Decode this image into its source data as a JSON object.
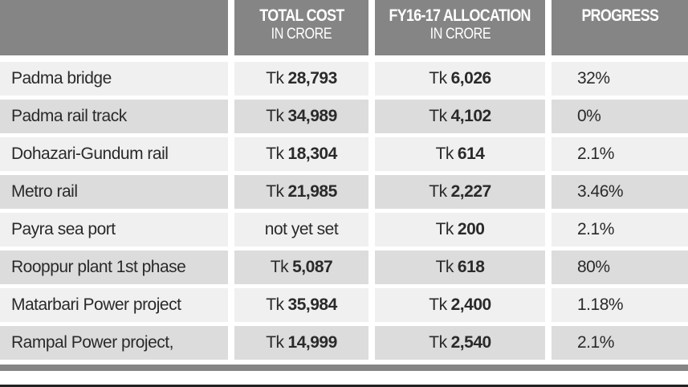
{
  "header": {
    "columns": [
      {
        "title": "",
        "subtitle": ""
      },
      {
        "title": "TOTAL COST",
        "subtitle": "IN CRORE"
      },
      {
        "title": "FY16-17 ALLOCATION",
        "subtitle": "IN CRORE"
      },
      {
        "title": "PROGRESS",
        "subtitle": ""
      }
    ]
  },
  "colors": {
    "header_bg": "#858585",
    "row_light": "#f0f0f0",
    "row_dark": "#dcdcdd"
  },
  "rows": [
    {
      "project": "Padma bridge",
      "cost_prefix": "Tk",
      "cost": "28,793",
      "alloc_prefix": "Tk",
      "alloc": "6,026",
      "progress": "32%"
    },
    {
      "project": "Padma rail track",
      "cost_prefix": "Tk",
      "cost": "34,989",
      "alloc_prefix": "Tk",
      "alloc": "4,102",
      "progress": "0%"
    },
    {
      "project": "Dohazari-Gundum rail",
      "cost_prefix": "Tk",
      "cost": "18,304",
      "alloc_prefix": "Tk",
      "alloc": "614",
      "progress": "2.1%"
    },
    {
      "project": "Metro rail",
      "cost_prefix": "Tk",
      "cost": "21,985",
      "alloc_prefix": "Tk",
      "alloc": "2,227",
      "progress": "3.46%"
    },
    {
      "project": "Payra sea port",
      "cost_prefix": "not yet set",
      "cost": "",
      "alloc_prefix": "Tk",
      "alloc": "200",
      "progress": "2.1%"
    },
    {
      "project": "Rooppur plant 1st phase",
      "cost_prefix": "Tk",
      "cost": "5,087",
      "alloc_prefix": "Tk",
      "alloc": "618",
      "progress": "80%"
    },
    {
      "project": "Matarbari Power project",
      "cost_prefix": "Tk",
      "cost": "35,984",
      "alloc_prefix": "Tk",
      "alloc": "2,400",
      "progress": "1.18%"
    },
    {
      "project": "Rampal Power project,",
      "cost_prefix": "Tk",
      "cost": "14,999",
      "alloc_prefix": "Tk",
      "alloc": "2,540",
      "progress": "2.1%"
    }
  ]
}
